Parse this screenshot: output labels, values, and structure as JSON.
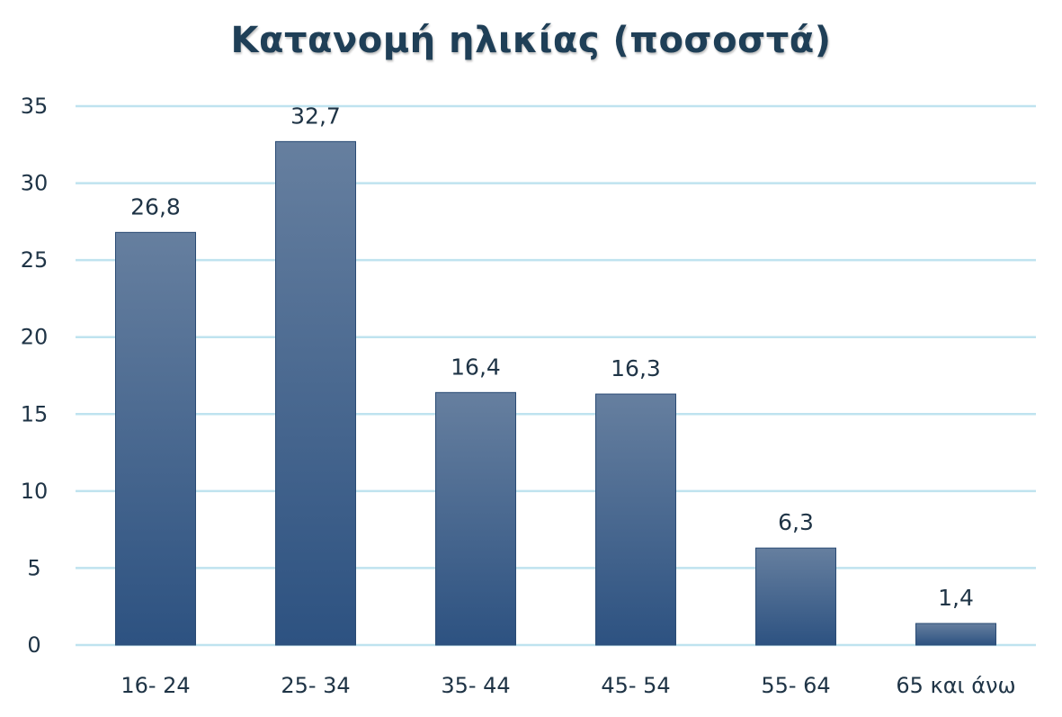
{
  "chart_data": {
    "type": "bar",
    "title": "Κατανομή ηλικίας (ποσοστά)",
    "categories": [
      "16- 24",
      "25- 34",
      "35- 44",
      "45- 54",
      "55- 64",
      "65 και άνω"
    ],
    "values": [
      26.8,
      32.7,
      16.4,
      16.3,
      6.3,
      1.4
    ],
    "data_labels": [
      "26,8",
      "32,7",
      "16,4",
      "16,3",
      "6,3",
      "1,4"
    ],
    "yticks": [
      0,
      5,
      10,
      15,
      20,
      25,
      30,
      35
    ],
    "ylim": [
      0,
      35
    ],
    "xlabel": "",
    "ylabel": "",
    "grid": true,
    "legend": "none",
    "colors": {
      "bar_top": "#667f9f",
      "bar_bottom": "#2d5281",
      "gridline": "#bfe3ef",
      "text": "#1f3446",
      "title": "#1f3f57"
    }
  }
}
